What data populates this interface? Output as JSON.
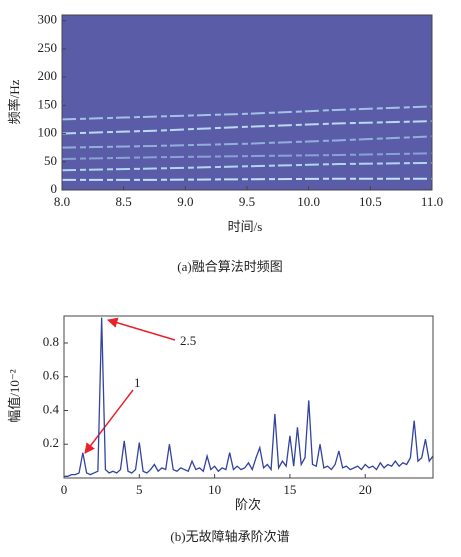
{
  "chart_data": [
    {
      "type": "spectrogram",
      "xlabel": "时间/s",
      "ylabel": "频率/Hz",
      "caption": "(a)融合算法时频图",
      "background": "#5b5ca8",
      "x": [
        8,
        8.75,
        9.5,
        10.25,
        11
      ],
      "series": [
        {
          "color": "#c9f0ff",
          "values": [
            18,
            18,
            19,
            20,
            20
          ]
        },
        {
          "color": "#b7e3f5",
          "values": [
            35,
            38,
            42,
            46,
            48
          ]
        },
        {
          "color": "#8ea8d8",
          "values": [
            55,
            58,
            60,
            62,
            65
          ]
        },
        {
          "color": "#98b8e0",
          "values": [
            75,
            78,
            82,
            88,
            95
          ]
        },
        {
          "color": "#c2e8f8",
          "values": [
            100,
            105,
            112,
            118,
            122
          ]
        },
        {
          "color": "#a9cdeb",
          "values": [
            125,
            130,
            135,
            142,
            148
          ]
        }
      ],
      "xlim": [
        8,
        11
      ],
      "xticks": [
        {
          "value": 8,
          "label": "8.0"
        },
        8.5,
        {
          "value": 9,
          "label": "9.0"
        },
        9.5,
        {
          "value": 10,
          "label": "10.0"
        },
        10.5,
        {
          "value": 11,
          "label": "11.0"
        }
      ],
      "ylim": [
        0,
        310
      ],
      "yticks": [
        0,
        50,
        100,
        150,
        200,
        250,
        300
      ]
    },
    {
      "type": "line",
      "xlabel": "阶次",
      "ylabel": "幅值/10⁻²",
      "caption": "(b)无故障轴承阶次谱",
      "annotations": [
        "2.5",
        "1"
      ],
      "color": "#3343a0",
      "x": [
        0,
        0.25,
        0.5,
        0.75,
        1,
        1.25,
        1.5,
        1.75,
        2,
        2.25,
        2.5,
        2.75,
        3,
        3.25,
        3.5,
        3.75,
        4,
        4.25,
        4.5,
        4.75,
        5,
        5.25,
        5.5,
        5.75,
        6,
        6.25,
        6.5,
        6.75,
        7,
        7.25,
        7.5,
        7.75,
        8,
        8.25,
        8.5,
        8.75,
        9,
        9.25,
        9.5,
        9.75,
        10,
        10.25,
        10.5,
        10.75,
        11,
        11.25,
        11.5,
        11.75,
        12,
        12.25,
        12.5,
        12.75,
        13,
        13.25,
        13.5,
        13.75,
        14,
        14.25,
        14.5,
        14.75,
        15,
        15.25,
        15.5,
        15.75,
        16,
        16.25,
        16.5,
        16.75,
        17,
        17.25,
        17.5,
        17.75,
        18,
        18.25,
        18.5,
        18.75,
        19,
        19.25,
        19.5,
        19.75,
        20,
        20.25,
        20.5,
        20.75,
        21,
        21.25,
        21.5,
        21.75,
        22,
        22.25,
        22.5,
        22.75,
        23,
        23.25,
        23.5,
        23.75,
        24,
        24.25,
        24.5
      ],
      "values": [
        0.01,
        0.01,
        0.02,
        0.02,
        0.03,
        0.15,
        0.03,
        0.02,
        0.03,
        0.04,
        0.95,
        0.05,
        0.03,
        0.04,
        0.03,
        0.05,
        0.22,
        0.04,
        0.03,
        0.05,
        0.21,
        0.04,
        0.03,
        0.05,
        0.08,
        0.04,
        0.06,
        0.05,
        0.2,
        0.05,
        0.04,
        0.06,
        0.05,
        0.04,
        0.1,
        0.05,
        0.06,
        0.04,
        0.13,
        0.05,
        0.07,
        0.04,
        0.06,
        0.05,
        0.15,
        0.05,
        0.07,
        0.05,
        0.06,
        0.09,
        0.05,
        0.12,
        0.18,
        0.06,
        0.08,
        0.05,
        0.38,
        0.06,
        0.1,
        0.07,
        0.25,
        0.07,
        0.3,
        0.08,
        0.12,
        0.46,
        0.08,
        0.07,
        0.2,
        0.06,
        0.07,
        0.05,
        0.08,
        0.16,
        0.06,
        0.07,
        0.05,
        0.06,
        0.07,
        0.05,
        0.08,
        0.06,
        0.07,
        0.05,
        0.09,
        0.06,
        0.08,
        0.07,
        0.1,
        0.07,
        0.09,
        0.08,
        0.12,
        0.34,
        0.1,
        0.12,
        0.23,
        0.1,
        0.13
      ],
      "xlim": [
        0,
        24.5
      ],
      "xticks": [
        0,
        5,
        10,
        15,
        20
      ],
      "ylim": [
        0,
        0.96
      ],
      "yticks": [
        0.2,
        0.4,
        0.6,
        0.8
      ]
    }
  ]
}
